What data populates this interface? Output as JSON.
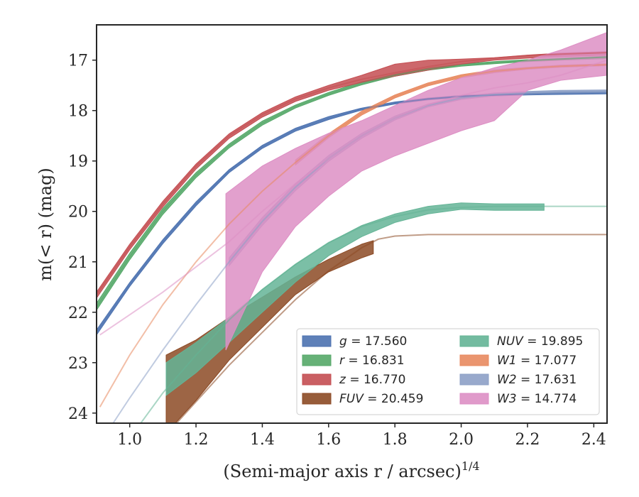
{
  "chart_data": {
    "type": "line",
    "xlabel": "(Semi-major axis r / arcsec)",
    "xlabel_sup": "1/4",
    "ylabel": "m(< r) (mag)",
    "xlim": [
      0.9,
      2.44
    ],
    "ylim": [
      24.2,
      16.3
    ],
    "y_inverted": true,
    "xticks": [
      1.0,
      1.2,
      1.4,
      1.6,
      1.8,
      2.0,
      2.2,
      2.4
    ],
    "xtick_labels": [
      "1.0",
      "1.2",
      "1.4",
      "1.6",
      "1.8",
      "2.0",
      "2.2",
      "2.4"
    ],
    "yticks": [
      17,
      18,
      19,
      20,
      21,
      22,
      23,
      24
    ],
    "ytick_labels": [
      "17",
      "18",
      "19",
      "20",
      "21",
      "22",
      "23",
      "24"
    ],
    "legend_position": "lower-right",
    "legend_columns": 2,
    "series": [
      {
        "name": "g = 17.560",
        "legend_var": "g",
        "legend_val": "17.560",
        "color": "#4c72b0",
        "model_x": [
          0.9,
          1.0,
          1.1,
          1.2,
          1.3,
          1.4,
          1.5,
          1.6,
          1.7,
          1.8,
          1.9,
          2.0,
          2.1,
          2.2,
          2.3,
          2.44
        ],
        "model_y": [
          22.4,
          21.45,
          20.6,
          19.85,
          19.2,
          18.72,
          18.38,
          18.15,
          17.97,
          17.85,
          17.77,
          17.72,
          17.69,
          17.67,
          17.66,
          17.65
        ],
        "x": [
          0.9,
          1.0,
          1.1,
          1.2,
          1.3,
          1.4,
          1.5,
          1.6,
          1.7,
          1.8,
          1.9,
          2.0,
          2.1,
          2.2,
          2.3,
          2.44
        ],
        "y_upper": [
          22.35,
          21.41,
          20.56,
          19.81,
          19.17,
          18.69,
          18.35,
          18.12,
          17.95,
          17.83,
          17.75,
          17.7,
          17.67,
          17.65,
          17.63,
          17.62
        ],
        "y_lower": [
          22.45,
          21.49,
          20.64,
          19.89,
          19.23,
          18.75,
          18.41,
          18.18,
          17.99,
          17.87,
          17.79,
          17.74,
          17.71,
          17.69,
          17.68,
          17.67
        ]
      },
      {
        "name": "r = 16.831",
        "legend_var": "r",
        "legend_val": "16.831",
        "color": "#55a868",
        "model_x": [
          0.9,
          1.0,
          1.1,
          1.2,
          1.3,
          1.4,
          1.5,
          1.6,
          1.7,
          1.8,
          1.9,
          2.0,
          2.1,
          2.2,
          2.3,
          2.44
        ],
        "model_y": [
          21.9,
          20.9,
          20.0,
          19.28,
          18.7,
          18.25,
          17.92,
          17.67,
          17.46,
          17.3,
          17.18,
          17.1,
          17.05,
          17.01,
          16.98,
          16.94
        ],
        "x": [
          0.9,
          1.0,
          1.1,
          1.2,
          1.3,
          1.4,
          1.5,
          1.6,
          1.7,
          1.8,
          1.9,
          2.0,
          2.1,
          2.2,
          2.3,
          2.44
        ],
        "y_upper": [
          21.82,
          20.83,
          19.94,
          19.23,
          18.66,
          18.21,
          17.89,
          17.64,
          17.43,
          17.28,
          17.16,
          17.08,
          17.03,
          16.99,
          16.96,
          16.92
        ],
        "y_lower": [
          21.96,
          20.96,
          20.06,
          19.33,
          18.74,
          18.29,
          17.95,
          17.7,
          17.49,
          17.32,
          17.2,
          17.12,
          17.07,
          17.03,
          17.0,
          16.97
        ]
      },
      {
        "name": "z = 16.770",
        "legend_var": "z",
        "legend_val": "16.770",
        "color": "#c44e52",
        "model_x": [
          0.9,
          1.0,
          1.1,
          1.2,
          1.3,
          1.4,
          1.5,
          1.6,
          1.7,
          1.8,
          1.9,
          2.0,
          2.1,
          2.2,
          2.3,
          2.44
        ],
        "model_y": [
          21.65,
          20.7,
          19.85,
          19.1,
          18.5,
          18.08,
          17.77,
          17.55,
          17.38,
          17.25,
          17.13,
          17.03,
          16.96,
          16.91,
          16.88,
          16.85
        ],
        "x": [
          0.9,
          1.0,
          1.1,
          1.2,
          1.3,
          1.4,
          1.5,
          1.6,
          1.7,
          1.8,
          1.9,
          2.0,
          2.1,
          2.2,
          2.3,
          2.44
        ],
        "y_upper": [
          21.6,
          20.65,
          19.8,
          19.06,
          18.46,
          18.04,
          17.73,
          17.5,
          17.3,
          17.08,
          17.0,
          16.98,
          16.95,
          16.9,
          16.86,
          16.83
        ],
        "y_lower": [
          21.72,
          20.76,
          19.91,
          19.16,
          18.55,
          18.13,
          17.82,
          17.6,
          17.44,
          17.32,
          17.2,
          17.08,
          17.0,
          16.96,
          16.93,
          16.9
        ]
      },
      {
        "name": "FUV = 20.459",
        "legend_var": "FUV",
        "legend_val": "20.459",
        "color": "#8c4a25",
        "model_x": [
          0.9,
          1.1,
          1.3,
          1.5,
          1.6,
          1.7,
          1.75,
          1.8,
          1.9,
          2.0,
          2.44
        ],
        "model_y": [
          25.9,
          24.5,
          23.05,
          21.75,
          21.18,
          20.72,
          20.55,
          20.49,
          20.46,
          20.46,
          20.46
        ],
        "x": [
          1.11,
          1.2,
          1.3,
          1.4,
          1.5,
          1.6,
          1.7,
          1.735
        ],
        "y_upper": [
          22.85,
          22.55,
          22.1,
          21.7,
          21.3,
          20.95,
          20.65,
          20.58
        ],
        "y_lower": [
          24.4,
          23.75,
          22.95,
          22.3,
          21.65,
          21.2,
          20.92,
          20.84
        ]
      },
      {
        "name": "NUV = 19.895",
        "legend_var": "NUV",
        "legend_val": "19.895",
        "color": "#64b496",
        "model_x": [
          0.9,
          1.0,
          1.1,
          1.2,
          1.3,
          1.4,
          1.5,
          1.6,
          1.7,
          1.8,
          1.9,
          2.0,
          2.1,
          2.2,
          2.44
        ],
        "model_y": [
          25.5,
          24.5,
          23.6,
          22.85,
          22.15,
          21.55,
          21.05,
          20.62,
          20.3,
          20.1,
          19.97,
          19.92,
          19.9,
          19.9,
          19.9
        ],
        "x": [
          1.11,
          1.2,
          1.3,
          1.4,
          1.5,
          1.6,
          1.7,
          1.8,
          1.9,
          2.0,
          2.1,
          2.2,
          2.25
        ],
        "y_upper": [
          23.0,
          22.6,
          22.1,
          21.55,
          21.05,
          20.62,
          20.28,
          20.05,
          19.9,
          19.83,
          19.85,
          19.85,
          19.85
        ],
        "y_lower": [
          23.65,
          23.2,
          22.6,
          22.0,
          21.4,
          20.88,
          20.5,
          20.22,
          20.05,
          19.96,
          19.98,
          19.98,
          19.98
        ]
      },
      {
        "name": "W1 = 17.077",
        "legend_var": "W1",
        "legend_val": "17.077",
        "color": "#e8895f",
        "model_x": [
          0.91,
          1.0,
          1.1,
          1.2,
          1.3,
          1.4,
          1.5,
          1.6,
          1.7,
          1.8,
          1.9,
          2.0,
          2.1,
          2.2,
          2.3,
          2.44
        ],
        "model_y": [
          23.88,
          22.85,
          21.85,
          21.0,
          20.25,
          19.6,
          19.03,
          18.5,
          18.05,
          17.72,
          17.48,
          17.32,
          17.22,
          17.16,
          17.12,
          17.09
        ],
        "x": [
          1.5,
          1.6,
          1.7,
          1.8,
          1.9,
          2.0,
          2.1,
          2.2,
          2.3,
          2.44
        ],
        "y_upper": [
          18.98,
          18.46,
          18.01,
          17.69,
          17.45,
          17.29,
          17.19,
          17.14,
          17.1,
          17.07
        ],
        "y_lower": [
          19.08,
          18.54,
          18.09,
          17.75,
          17.51,
          17.35,
          17.25,
          17.18,
          17.14,
          17.11
        ]
      },
      {
        "name": "W2 = 17.631",
        "legend_var": "W2",
        "legend_val": "17.631",
        "color": "#8da0c6",
        "model_x": [
          0.95,
          1.0,
          1.1,
          1.2,
          1.3,
          1.4,
          1.5,
          1.6,
          1.7,
          1.8,
          1.9,
          2.0,
          2.1,
          2.2,
          2.3,
          2.44
        ],
        "model_y": [
          24.2,
          23.7,
          22.75,
          21.85,
          21.0,
          20.2,
          19.52,
          18.95,
          18.5,
          18.15,
          17.9,
          17.75,
          17.68,
          17.65,
          17.63,
          17.62
        ],
        "x": [
          1.3,
          1.4,
          1.5,
          1.6,
          1.7,
          1.8,
          1.9,
          2.0,
          2.1,
          2.2,
          2.3,
          2.44
        ],
        "y_upper": [
          20.92,
          20.12,
          19.45,
          18.89,
          18.45,
          18.11,
          17.87,
          17.72,
          17.65,
          17.62,
          17.6,
          17.59
        ],
        "y_lower": [
          21.08,
          20.28,
          19.59,
          19.01,
          18.55,
          18.19,
          17.93,
          17.78,
          17.71,
          17.68,
          17.66,
          17.65
        ]
      },
      {
        "name": "W3 = 14.774",
        "legend_var": "W3",
        "legend_val": "14.774",
        "color": "#dd8fc4",
        "model_x": [
          0.91,
          1.0,
          1.1,
          1.2,
          1.3,
          1.4,
          1.5,
          1.6,
          1.7,
          1.8,
          1.9,
          2.0,
          2.1,
          2.2,
          2.3,
          2.44
        ],
        "model_y": [
          22.45,
          22.05,
          21.6,
          21.1,
          20.6,
          20.0,
          19.45,
          18.95,
          18.5,
          18.15,
          17.88,
          17.7,
          17.55,
          17.45,
          17.3,
          17.0
        ],
        "x": [
          1.29,
          1.35,
          1.4,
          1.5,
          1.6,
          1.7,
          1.8,
          1.9,
          2.0,
          2.1,
          2.2,
          2.3,
          2.44
        ],
        "y_upper": [
          19.65,
          19.35,
          19.1,
          18.75,
          18.45,
          18.2,
          17.9,
          17.6,
          17.35,
          17.15,
          17.0,
          16.8,
          16.45
        ],
        "y_lower": [
          22.75,
          21.9,
          21.2,
          20.3,
          19.7,
          19.2,
          18.9,
          18.65,
          18.4,
          18.2,
          17.6,
          17.4,
          17.3
        ]
      }
    ]
  }
}
